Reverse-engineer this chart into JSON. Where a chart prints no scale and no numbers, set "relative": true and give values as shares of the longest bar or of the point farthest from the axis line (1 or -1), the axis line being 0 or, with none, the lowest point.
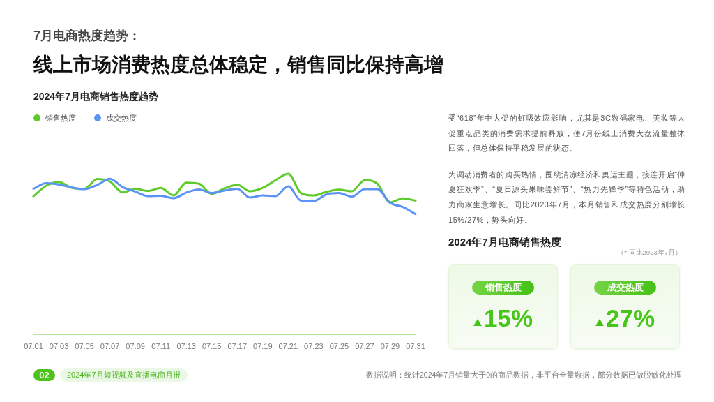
{
  "chart_data": [
    {
      "type": "other",
      "title": "7月电商热度趋势：",
      "subtitle": "线上市场消费热度总体稳定，销售同比保持高增"
    },
    {
      "type": "line",
      "title": "2024年7月电商销售热度趋势",
      "categories": [
        "07.01",
        null,
        "07.03",
        null,
        "07.05",
        null,
        "07.07",
        null,
        "07.09",
        null,
        "07.11",
        null,
        "07.13",
        null,
        "07.15",
        null,
        "07.17",
        null,
        "07.19",
        null,
        "07.21",
        null,
        "07.23",
        null,
        "07.25",
        null,
        "07.27",
        null,
        "07.29",
        null,
        "07.31"
      ],
      "relative": true,
      "legend": "top left",
      "series": [
        {
          "name": "销售热度",
          "color": "#5fcb2b",
          "values": [
            0.86,
            0.926,
            0.948,
            0.913,
            0.906,
            0.967,
            0.952,
            0.884,
            0.906,
            0.893,
            0.912,
            0.865,
            0.945,
            0.938,
            0.875,
            0.909,
            0.932,
            0.891,
            0.912,
            0.96,
            1.0,
            0.88,
            0.865,
            0.887,
            0.901,
            0.891,
            0.96,
            0.938,
            0.822,
            0.847,
            0.833
          ]
        },
        {
          "name": "成交热度",
          "color": "#5b93f6",
          "values": [
            0.907,
            0.941,
            0.933,
            0.915,
            0.904,
            0.93,
            0.968,
            0.917,
            0.889,
            0.861,
            0.863,
            0.848,
            0.883,
            0.902,
            0.88,
            0.896,
            0.907,
            0.852,
            0.865,
            0.861,
            0.922,
            0.833,
            0.83,
            0.872,
            0.88,
            0.857,
            0.904,
            0.904,
            0.82,
            0.793,
            0.749
          ]
        }
      ]
    },
    {
      "type": "other",
      "annotations": [
        "受“618”年中大促的虹吸效应影响，尤其是3C数码家电、美妆等大促重点品类的消费需求提前释放，使7月份线上消费大盘流量整体回落，但总体保持平稳发展的状态。",
        "为调动消费者的购买热情，围绕清凉经济和奥运主题，接连开启“仲夏狂欢季”、“夏日源头果味尝鲜节”、“热力先锋季”等特色活动，助力商家生意增长。同比2023年7月，本月销售和成交热度分别增长15%/27%，势头向好。"
      ],
      "title": "2024年7月电商销售热度",
      "subtitle": "（* 同比2023年7月）",
      "categories": [
        "销售热度",
        "成交热度"
      ],
      "value_labels": [
        "15%",
        "27%"
      ]
    },
    {
      "type": "other",
      "annotations": [
        "02",
        "2024年7月短视频及直播电商月报",
        "数据说明：统计2024年7月销量大于0的商品数据，非平台全量数据，部分数据已做脱敏化处理"
      ]
    }
  ]
}
